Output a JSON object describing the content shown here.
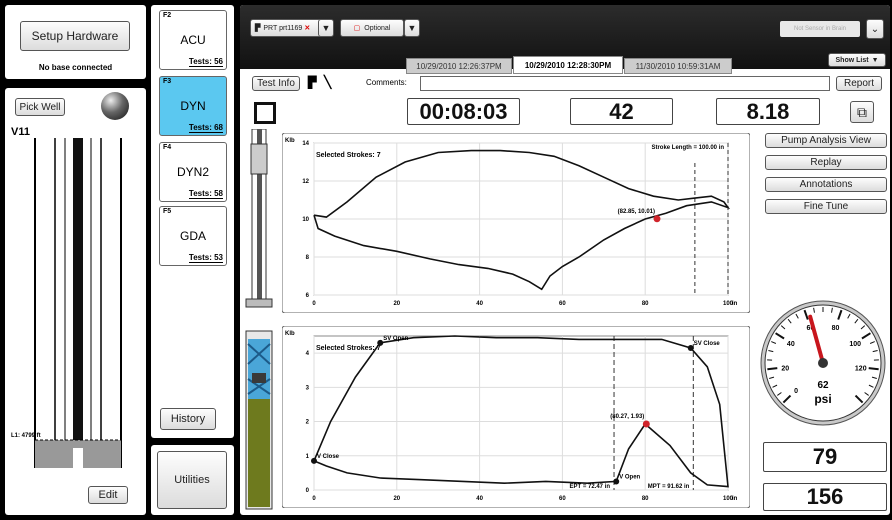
{
  "left": {
    "setup_label": "Setup Hardware",
    "no_base": "No base connected",
    "pick_well": "Pick Well",
    "well_name": "V11",
    "level_label": "L1: 4799 ft",
    "edit_label": "Edit"
  },
  "tests": [
    {
      "key": "F2",
      "name": "ACU",
      "tests": "Tests: 56"
    },
    {
      "key": "F3",
      "name": "DYN",
      "tests": "Tests: 68"
    },
    {
      "key": "F4",
      "name": "DYN2",
      "tests": "Tests: 58"
    },
    {
      "key": "F5",
      "name": "GDA",
      "tests": "Tests: 53"
    }
  ],
  "history_label": "History",
  "utilities_label": "Utilities",
  "top": {
    "device_label": "PRT prt1169",
    "optional_label": "Optional",
    "sensor_label": "Not Sensor in Brain",
    "show_list": "Show List",
    "tabs": [
      "10/29/2010 12:26:37PM",
      "10/29/2010 12:28:30PM",
      "11/30/2010 10:59:31AM"
    ]
  },
  "toolbar": {
    "test_info": "Test Info",
    "comments_label": "Comments:",
    "comments_value": "",
    "report": "Report"
  },
  "readouts": {
    "time": "00:08:03",
    "spm": "42",
    "value": "8.18"
  },
  "right": {
    "pump_view": "Pump Analysis View",
    "replay": "Replay",
    "annotations": "Annotations",
    "fine_tune": "Fine Tune",
    "gauge_value": "62",
    "gauge_unit": "psi",
    "bottom1": "79",
    "bottom2": "156"
  },
  "chart_data": [
    {
      "type": "line",
      "ylabel": "Klb",
      "xlabel": "in",
      "xlim": [
        0,
        100
      ],
      "ylim": [
        6,
        14
      ],
      "x_ticks": [
        0,
        20,
        40,
        60,
        80,
        100
      ],
      "y_ticks": [
        6,
        8,
        10,
        12,
        14
      ],
      "annotation_left": "Selected Strokes: 7",
      "annotation_right": "Stroke Length = 100.00 in",
      "marker_label": "(82.85, 10.01)",
      "marker": [
        82.85,
        10.01
      ],
      "x": [
        0,
        3,
        8,
        15,
        22,
        30,
        38,
        45,
        52,
        58,
        64,
        70,
        76,
        82,
        88,
        92,
        96,
        99,
        100,
        96,
        90,
        85,
        80,
        75,
        70,
        64,
        60,
        57,
        55,
        52,
        48,
        42,
        35,
        28,
        20,
        12,
        5,
        1,
        0
      ],
      "y": [
        10.2,
        10.1,
        10.9,
        12.2,
        13.0,
        13.5,
        13.6,
        13.6,
        13.5,
        13.3,
        12.8,
        12.2,
        11.6,
        11.2,
        11.0,
        11.1,
        11.2,
        10.9,
        10.6,
        10.9,
        10.7,
        10.3,
        10.0,
        9.5,
        8.9,
        8.0,
        7.5,
        7.0,
        6.3,
        6.7,
        7.1,
        7.4,
        7.6,
        7.9,
        8.3,
        8.6,
        9.1,
        9.5,
        10.2
      ]
    },
    {
      "type": "line",
      "ylabel": "Klb",
      "xlabel": "in",
      "xlim": [
        0,
        100
      ],
      "ylim": [
        0,
        4.5
      ],
      "x_ticks": [
        0,
        20,
        40,
        60,
        80,
        100
      ],
      "y_ticks": [
        0,
        1,
        2,
        3,
        4
      ],
      "annotation_left": "Selected Strokes: 7",
      "marker_label": "(80.27, 1.93)",
      "marker": [
        80.27,
        1.93
      ],
      "events": [
        {
          "label": "SV Open",
          "x": 16,
          "y": 4.3
        },
        {
          "label": "SV Close",
          "x": 91,
          "y": 4.15
        },
        {
          "label": "V Open",
          "x": 73,
          "y": 0.25
        },
        {
          "label": "V Close",
          "x": 0,
          "y": 0.85
        }
      ],
      "footer_left": "EPT = 72.47 in",
      "footer_right": "MPT = 91.62 in",
      "x": [
        0,
        4,
        10,
        16,
        24,
        34,
        44,
        54,
        64,
        74,
        84,
        91,
        95,
        98,
        100,
        95,
        91,
        86,
        80,
        76,
        73,
        66,
        56,
        46,
        36,
        26,
        16,
        8,
        3,
        0,
        0
      ],
      "y": [
        0.85,
        2.0,
        3.3,
        4.3,
        4.45,
        4.5,
        4.45,
        4.45,
        4.4,
        4.4,
        4.4,
        4.15,
        3.6,
        2.5,
        0.1,
        0.15,
        0.5,
        1.3,
        1.93,
        1.2,
        0.25,
        0.2,
        0.25,
        0.2,
        0.25,
        0.3,
        0.35,
        0.5,
        0.7,
        0.85,
        0.85
      ]
    }
  ]
}
